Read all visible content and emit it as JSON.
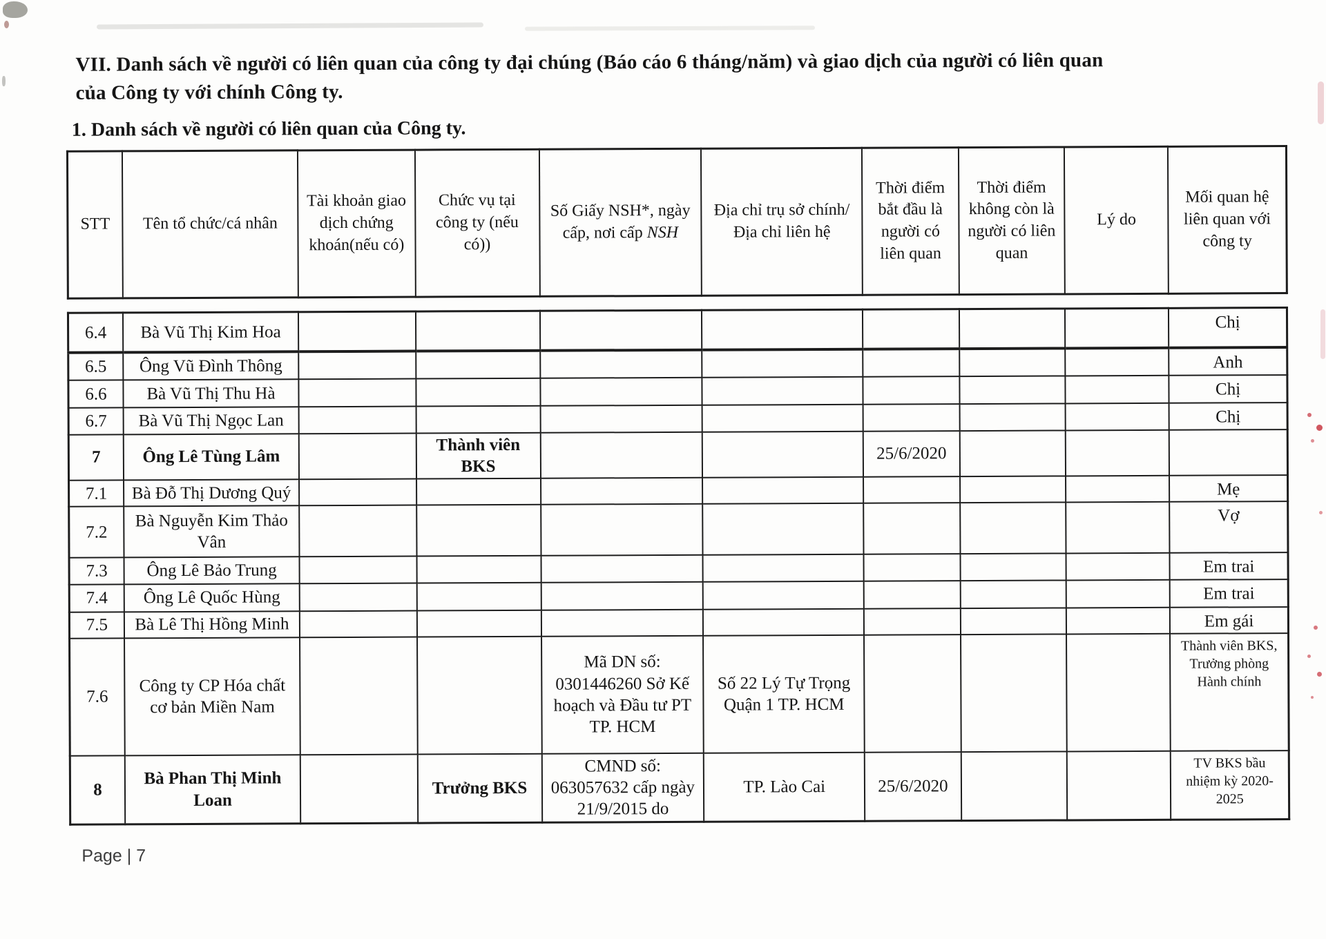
{
  "page": {
    "heading_line1": "VII. Danh sách về người có liên quan của công ty đại chúng (Báo cáo 6 tháng/năm) và giao dịch của người có liên quan",
    "heading_line2": "của Công ty với chính Công ty.",
    "subheading": "1. Danh sách về người có liên quan của Công ty.",
    "footer": "Page | 7"
  },
  "table": {
    "columns": [
      {
        "label": "STT"
      },
      {
        "label": "Tên tổ chức/cá nhân"
      },
      {
        "label": "Tài khoản giao dịch chứng khoán(nếu có)"
      },
      {
        "label": "Chức vụ tại công ty (nếu có))"
      },
      {
        "label": "Số Giấy NSH*, ngày cấp, nơi cấp",
        "italic": "NSH"
      },
      {
        "label": "Địa chỉ trụ sở chính/ Địa chỉ liên hệ"
      },
      {
        "label": "Thời điểm bắt đầu là người có liên quan"
      },
      {
        "label": "Thời điểm không còn là người có liên quan"
      },
      {
        "label": "Lý do"
      },
      {
        "label": "Mối quan hệ liên quan với công ty"
      }
    ],
    "rows": [
      {
        "stt": "6.4",
        "name": "Bà Vũ Thị Kim Hoa",
        "account": "",
        "position": "",
        "nsh": "",
        "address": "",
        "start": "",
        "end": "",
        "reason": "",
        "relation": "Chị",
        "bold": false,
        "relation_small": false
      },
      {
        "stt": "6.5",
        "name": "Ông Vũ Đình Thông",
        "account": "",
        "position": "",
        "nsh": "",
        "address": "",
        "start": "",
        "end": "",
        "reason": "",
        "relation": "Anh",
        "bold": false,
        "relation_small": false
      },
      {
        "stt": "6.6",
        "name": "Bà Vũ Thị Thu Hà",
        "account": "",
        "position": "",
        "nsh": "",
        "address": "",
        "start": "",
        "end": "",
        "reason": "",
        "relation": "Chị",
        "bold": false,
        "relation_small": false
      },
      {
        "stt": "6.7",
        "name": "Bà Vũ Thị Ngọc Lan",
        "account": "",
        "position": "",
        "nsh": "",
        "address": "",
        "start": "",
        "end": "",
        "reason": "",
        "relation": "Chị",
        "bold": false,
        "relation_small": false
      },
      {
        "stt": "7",
        "name": "Ông Lê Tùng Lâm",
        "account": "",
        "position": "Thành viên BKS",
        "nsh": "",
        "address": "",
        "start": "25/6/2020",
        "end": "",
        "reason": "",
        "relation": "",
        "bold": true,
        "relation_small": false
      },
      {
        "stt": "7.1",
        "name": "Bà Đỗ Thị Dương Quý",
        "account": "",
        "position": "",
        "nsh": "",
        "address": "",
        "start": "",
        "end": "",
        "reason": "",
        "relation": "Mẹ",
        "bold": false,
        "relation_small": false
      },
      {
        "stt": "7.2",
        "name": "Bà Nguyễn Kim Thảo Vân",
        "account": "",
        "position": "",
        "nsh": "",
        "address": "",
        "start": "",
        "end": "",
        "reason": "",
        "relation": "Vợ",
        "bold": false,
        "relation_small": false
      },
      {
        "stt": "7.3",
        "name": "Ông Lê Bảo Trung",
        "account": "",
        "position": "",
        "nsh": "",
        "address": "",
        "start": "",
        "end": "",
        "reason": "",
        "relation": "Em trai",
        "bold": false,
        "relation_small": false
      },
      {
        "stt": "7.4",
        "name": "Ông Lê Quốc Hùng",
        "account": "",
        "position": "",
        "nsh": "",
        "address": "",
        "start": "",
        "end": "",
        "reason": "",
        "relation": "Em trai",
        "bold": false,
        "relation_small": false
      },
      {
        "stt": "7.5",
        "name": "Bà Lê Thị Hồng Minh",
        "account": "",
        "position": "",
        "nsh": "",
        "address": "",
        "start": "",
        "end": "",
        "reason": "",
        "relation": "Em gái",
        "bold": false,
        "relation_small": false
      },
      {
        "stt": "7.6",
        "name": "Công ty CP Hóa chất cơ bản Miền Nam",
        "account": "",
        "position": "",
        "nsh": "Mã DN số: 0301446260 Sở Kế hoạch và Đầu tư PT TP. HCM",
        "address": "Số 22 Lý Tự Trọng Quận 1 TP. HCM",
        "start": "",
        "end": "",
        "reason": "",
        "relation": "Thành viên BKS, Trưởng phòng Hành chính",
        "bold": false,
        "relation_small": true
      },
      {
        "stt": "8",
        "name": "Bà Phan Thị Minh Loan",
        "account": "",
        "position": "Trưởng BKS",
        "nsh": "CMND số: 063057632 cấp ngày 21/9/2015 do",
        "address": "TP. Lào Cai",
        "start": "25/6/2020",
        "end": "",
        "reason": "",
        "relation": "TV BKS bầu nhiệm kỳ 2020-2025",
        "bold": true,
        "relation_small": true
      }
    ]
  }
}
